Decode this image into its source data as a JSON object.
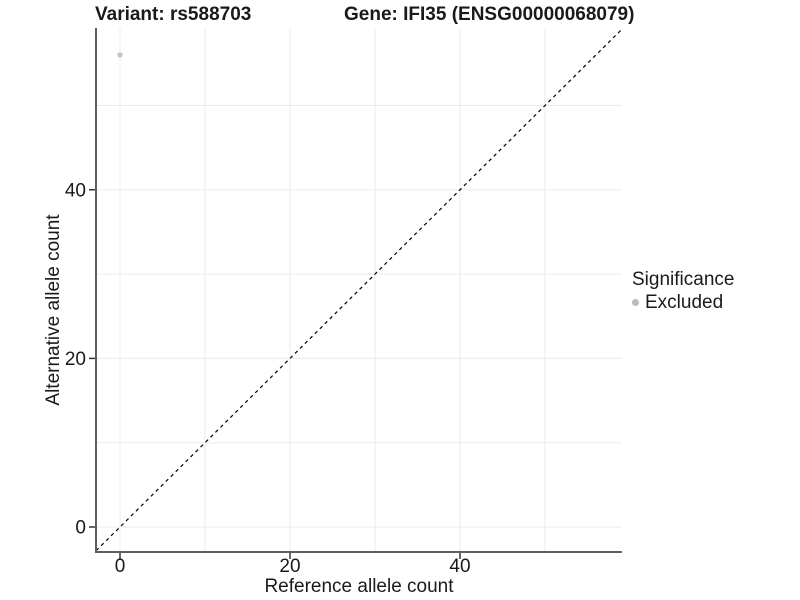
{
  "titles": {
    "variant": "Variant: rs588703",
    "gene": "Gene: IFI35 (ENSG00000068079)"
  },
  "legend": {
    "title": "Significance",
    "items": [
      {
        "label": "Excluded",
        "color": "#bcbcbc"
      }
    ]
  },
  "colors": {
    "background": "#ffffff",
    "grid": "#ebebeb",
    "axis_line": "#5e5e5e",
    "tick_mark": "#333333",
    "text": "#1a1a1a",
    "point": "#c4c4c4",
    "reference_line": "#000000"
  },
  "chart_data": {
    "type": "scatter",
    "title": "Variant: rs588703 | Gene: IFI35 (ENSG00000068079)",
    "xlabel": "Reference allele count",
    "ylabel": "Alternative allele count",
    "xlim": [
      -2.8,
      59
    ],
    "ylim": [
      -2.8,
      59
    ],
    "x_ticks": [
      0,
      20,
      40
    ],
    "y_ticks": [
      0,
      20,
      40
    ],
    "grid_values": [
      0,
      10,
      20,
      30,
      40,
      50
    ],
    "grid": "on (major + minor every 10)",
    "legend_position": "right",
    "series": [
      {
        "name": "Excluded",
        "color": "#c4c4c4",
        "points": [
          {
            "x": 0,
            "y": 56
          }
        ]
      }
    ],
    "reference_line": {
      "kind": "identity y = x",
      "style": "dashed",
      "color": "#000000"
    }
  }
}
